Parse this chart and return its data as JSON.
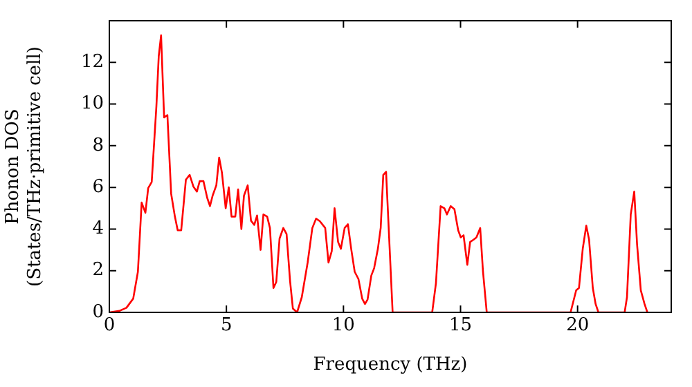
{
  "chart_data": {
    "type": "line",
    "xlabel": "Frequency (THz)",
    "ylabel": "Phonon DOS\n(States/THz·primitive cell)",
    "xlim": [
      0,
      24
    ],
    "ylim": [
      0,
      14
    ],
    "xticks": [
      0,
      5,
      10,
      15,
      20
    ],
    "yticks": [
      0,
      2,
      4,
      6,
      8,
      10,
      12
    ],
    "grid": false,
    "legend": false,
    "marker": "none",
    "line_style": "solid",
    "series": [
      {
        "color": "#ff0000",
        "x": [
          0,
          0.43,
          0.73,
          1.02,
          1.22,
          1.38,
          1.54,
          1.66,
          1.81,
          2.01,
          2.11,
          2.21,
          2.34,
          2.48,
          2.64,
          2.8,
          2.92,
          3.07,
          3.27,
          3.43,
          3.59,
          3.74,
          3.86,
          4.02,
          4.18,
          4.3,
          4.41,
          4.57,
          4.69,
          4.81,
          4.97,
          5.1,
          5.22,
          5.38,
          5.5,
          5.64,
          5.75,
          5.91,
          6.05,
          6.19,
          6.31,
          6.46,
          6.58,
          6.74,
          6.86,
          7.01,
          7.13,
          7.27,
          7.43,
          7.57,
          7.72,
          7.84,
          8.02,
          8.22,
          8.47,
          8.67,
          8.83,
          8.99,
          9.22,
          9.36,
          9.5,
          9.62,
          9.77,
          9.89,
          10.05,
          10.19,
          10.33,
          10.48,
          10.64,
          10.8,
          10.92,
          11.03,
          11.19,
          11.31,
          11.47,
          11.59,
          11.7,
          11.82,
          12.1,
          13.79,
          13.95,
          14.15,
          14.31,
          14.42,
          14.58,
          14.74,
          14.9,
          15.01,
          15.13,
          15.29,
          15.41,
          15.57,
          15.68,
          15.84,
          15.96,
          16.12,
          19.7,
          19.94,
          20.06,
          20.22,
          20.37,
          20.49,
          20.65,
          20.77,
          20.89,
          22.01,
          22.11,
          22.27,
          22.42,
          22.54,
          22.7,
          22.86,
          22.98
        ],
        "values": [
          0,
          0.07,
          0.22,
          0.66,
          1.95,
          5.27,
          4.78,
          5.97,
          6.26,
          9.9,
          12.3,
          13.3,
          9.36,
          9.47,
          5.7,
          4.6,
          3.94,
          3.94,
          6.37,
          6.6,
          6.04,
          5.8,
          6.3,
          6.3,
          5.5,
          5.1,
          5.6,
          6.1,
          7.43,
          6.7,
          5.0,
          6.0,
          4.6,
          4.6,
          5.9,
          4.0,
          5.6,
          6.1,
          4.4,
          4.2,
          4.65,
          3.0,
          4.7,
          4.6,
          4.05,
          1.17,
          1.46,
          3.54,
          4.05,
          3.76,
          1.5,
          0.18,
          0,
          0.73,
          2.39,
          4.05,
          4.5,
          4.38,
          4.05,
          2.39,
          2.94,
          5.0,
          3.38,
          3.05,
          4.05,
          4.23,
          3.05,
          1.95,
          1.6,
          0.66,
          0.4,
          0.62,
          1.77,
          2.12,
          3.05,
          4.05,
          6.6,
          6.75,
          0,
          0,
          1.4,
          5.1,
          5.0,
          4.7,
          5.1,
          4.95,
          3.94,
          3.6,
          3.7,
          2.28,
          3.38,
          3.5,
          3.6,
          4.05,
          1.95,
          0,
          0,
          1.06,
          1.17,
          3.05,
          4.16,
          3.5,
          1.17,
          0.4,
          0,
          0,
          0.73,
          4.7,
          5.8,
          3.27,
          1.06,
          0.4,
          0
        ]
      }
    ]
  }
}
